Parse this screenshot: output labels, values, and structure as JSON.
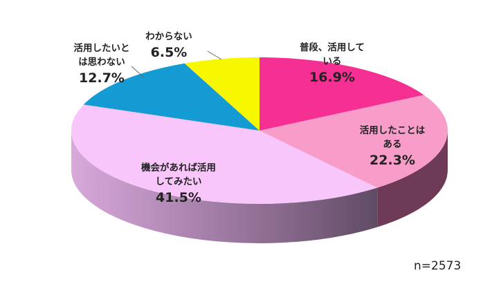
{
  "chart_data": {
    "type": "pie",
    "title": "",
    "slices": [
      {
        "label_lines": [
          "普段、活用して",
          "いる"
        ],
        "value": 16.9,
        "value_text": "16.9%",
        "color": "#f62f93",
        "side_color": "#9c1f5e"
      },
      {
        "label_lines": [
          "活用したことは",
          "ある"
        ],
        "value": 22.3,
        "value_text": "22.3%",
        "color": "#f89cc9",
        "side_color": "#6e3a56"
      },
      {
        "label_lines": [
          "機会があれば活用",
          "してみたい"
        ],
        "value": 41.5,
        "value_text": "41.5%",
        "color": "#f8c6fa",
        "side_color": "#c7a0cf"
      },
      {
        "label_lines": [
          "活用したいと",
          "は思わない"
        ],
        "value": 12.7,
        "value_text": "12.7%",
        "color": "#159bd4",
        "side_color": "#0c5f84"
      },
      {
        "label_lines": [
          "わからない"
        ],
        "value": 6.5,
        "value_text": "6.5%",
        "color": "#f7f700",
        "side_color": "#9a9a00"
      }
    ],
    "note": "n=2573"
  }
}
